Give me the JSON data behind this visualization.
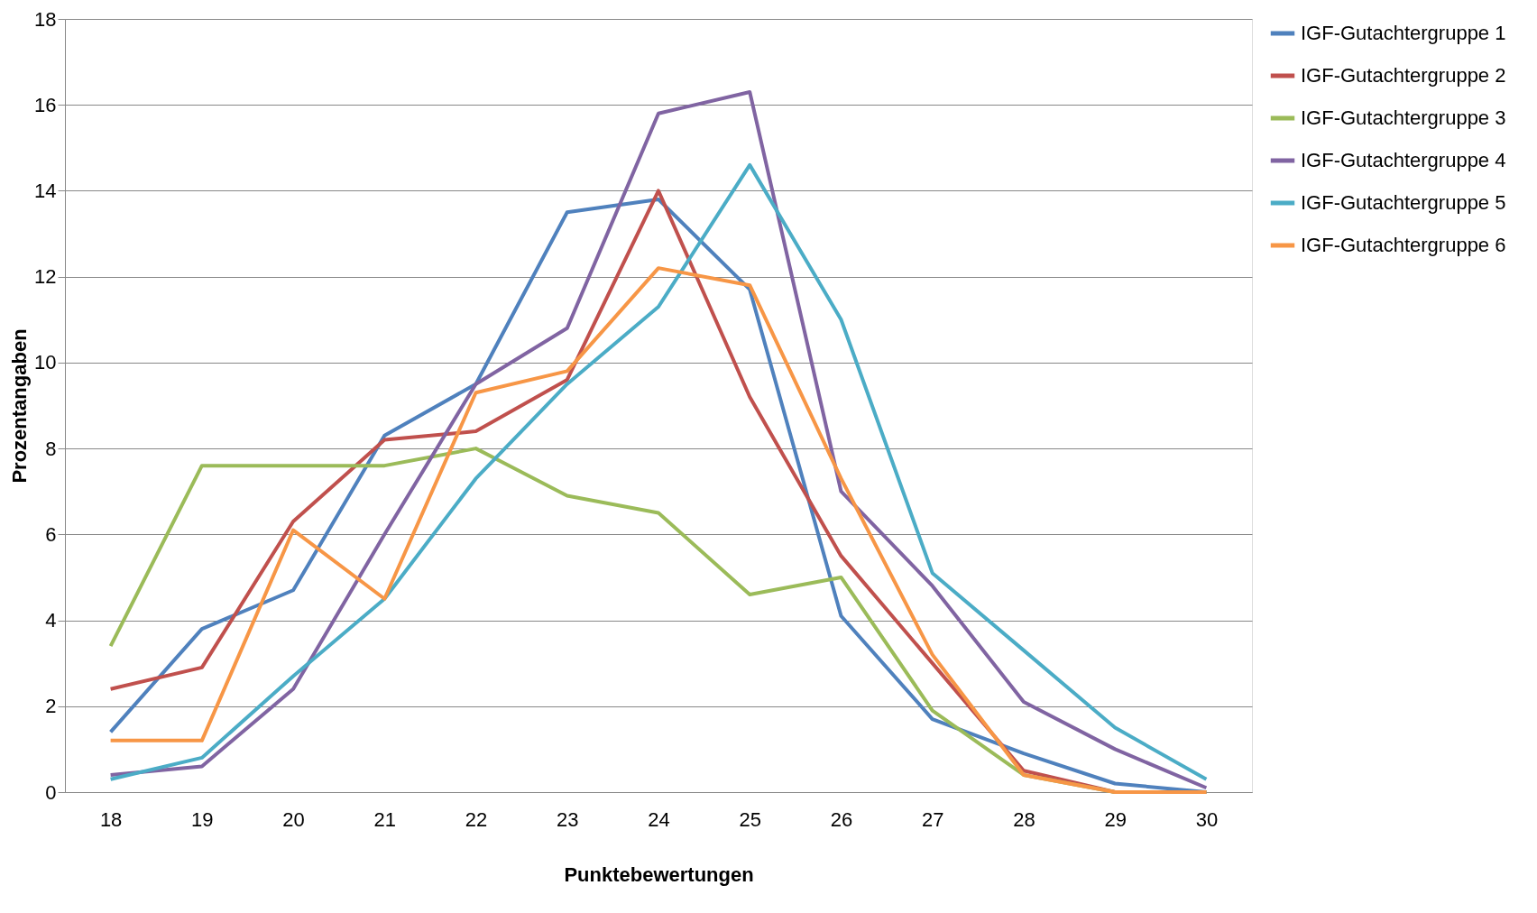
{
  "chart_data": {
    "type": "line",
    "xlabel": "Punktebewertungen",
    "ylabel": "Prozentangaben",
    "categories": [
      "18",
      "19",
      "20",
      "21",
      "22",
      "23",
      "24",
      "25",
      "26",
      "27",
      "28",
      "29",
      "30"
    ],
    "series": [
      {
        "name": "IGF-Gutachtergruppe 1",
        "color": "#4f81bd",
        "values": [
          1.4,
          3.8,
          4.7,
          8.3,
          9.5,
          13.5,
          13.8,
          11.7,
          4.1,
          1.7,
          0.9,
          0.2,
          0.0
        ]
      },
      {
        "name": "IGF-Gutachtergruppe 2",
        "color": "#c0504d",
        "values": [
          2.4,
          2.9,
          6.3,
          8.2,
          8.4,
          9.6,
          14.0,
          9.2,
          5.5,
          3.0,
          0.5,
          0.0,
          0.0
        ]
      },
      {
        "name": "IGF-Gutachtergruppe 3",
        "color": "#9bbb59",
        "values": [
          3.4,
          7.6,
          7.6,
          7.6,
          8.0,
          6.9,
          6.5,
          4.6,
          5.0,
          1.9,
          0.4,
          0.0,
          0.0
        ]
      },
      {
        "name": "IGF-Gutachtergruppe 4",
        "color": "#8064a2",
        "values": [
          0.4,
          0.6,
          2.4,
          6.0,
          9.5,
          10.8,
          15.8,
          16.3,
          7.0,
          4.8,
          2.1,
          1.0,
          0.1
        ]
      },
      {
        "name": "IGF-Gutachtergruppe 5",
        "color": "#4bacc6",
        "values": [
          0.3,
          0.8,
          2.7,
          4.5,
          7.3,
          9.5,
          11.3,
          14.6,
          11.0,
          5.1,
          3.3,
          1.5,
          0.3
        ]
      },
      {
        "name": "IGF-Gutachtergruppe 6",
        "color": "#f79646",
        "values": [
          1.2,
          1.2,
          6.1,
          4.5,
          9.3,
          9.8,
          12.2,
          11.8,
          7.3,
          3.2,
          0.4,
          0.0,
          0.0
        ]
      }
    ],
    "ylim": [
      0,
      18
    ],
    "yticks": [
      0,
      2,
      4,
      6,
      8,
      10,
      12,
      14,
      16,
      18
    ],
    "grid": "y",
    "legend": "right",
    "marker": "none",
    "line_style": "solid"
  }
}
